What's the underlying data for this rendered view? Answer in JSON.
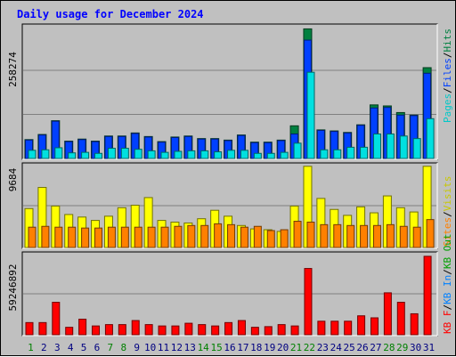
{
  "title": "Daily usage for December 2024",
  "colors": {
    "background": "#c0c0c0",
    "panel": "#c0c0c0",
    "grid": "#808080",
    "weekday_label": "#000080",
    "weekend_label": "#008000",
    "pages": "#00e0e0",
    "hits": "#008040",
    "files": "#0040ff",
    "visits": "#ffff00",
    "sites": "#ff8000",
    "kbytes": "#ff0000",
    "kb_in": "#0080ff",
    "kb_out": "#00a000"
  },
  "legend_top": [
    {
      "label": "Hits",
      "color": "#008040"
    },
    {
      "label": "/",
      "color": "#000000"
    },
    {
      "label": "Files",
      "color": "#0040ff"
    },
    {
      "label": "/",
      "color": "#000000"
    },
    {
      "label": "Pages",
      "color": "#00c8c8"
    }
  ],
  "legend_middle": [
    {
      "label": "Visits",
      "color": "#c8c800"
    },
    {
      "label": "/",
      "color": "#000000"
    },
    {
      "label": "Sites",
      "color": "#ff8000"
    }
  ],
  "legend_bottom": [
    {
      "label": "KB Out",
      "color": "#00a000"
    },
    {
      "label": "/",
      "color": "#000000"
    },
    {
      "label": "KB In",
      "color": "#0080ff"
    },
    {
      "label": "/",
      "color": "#000000"
    },
    {
      "label": "KB F",
      "color": "#ff0000"
    }
  ],
  "chart_data": [
    {
      "type": "bar",
      "panel": "hits-files-pages",
      "title": "Daily usage for December 2024",
      "ymax_label": "258274",
      "ylim": [
        0,
        258274
      ],
      "categories": [
        "1",
        "2",
        "3",
        "4",
        "5",
        "6",
        "7",
        "8",
        "9",
        "10",
        "11",
        "12",
        "13",
        "14",
        "15",
        "16",
        "17",
        "18",
        "19",
        "20",
        "21",
        "22",
        "23",
        "24",
        "25",
        "26",
        "27",
        "28",
        "29",
        "30",
        "31"
      ],
      "weekend_days": [
        "1",
        "7",
        "8",
        "14",
        "15",
        "21",
        "22",
        "28",
        "29"
      ],
      "series": [
        {
          "name": "Hits",
          "values": [
            37000,
            47000,
            74000,
            34000,
            38000,
            34000,
            44000,
            44000,
            50000,
            43000,
            33000,
            42000,
            44000,
            39000,
            39000,
            36000,
            46000,
            32000,
            32000,
            36000,
            64000,
            254000,
            56000,
            54000,
            51000,
            66000,
            105000,
            103000,
            90000,
            85000,
            178000
          ]
        },
        {
          "name": "Files",
          "values": [
            36000,
            46000,
            73000,
            33000,
            37000,
            33000,
            43000,
            43000,
            49000,
            42000,
            32000,
            41000,
            43000,
            38000,
            38000,
            35000,
            45000,
            31000,
            31000,
            35000,
            48000,
            232000,
            55000,
            53000,
            50000,
            65000,
            99000,
            100000,
            85000,
            84000,
            167000
          ]
        },
        {
          "name": "Pages",
          "values": [
            16000,
            17000,
            21000,
            11000,
            12000,
            10000,
            20000,
            20000,
            18000,
            15000,
            12000,
            14000,
            15000,
            15000,
            13000,
            16000,
            16000,
            10000,
            10000,
            12000,
            30000,
            169000,
            17000,
            17000,
            22000,
            22000,
            48000,
            48000,
            44000,
            39000,
            78000
          ]
        }
      ]
    },
    {
      "type": "bar",
      "panel": "visits-sites",
      "ymax_label": "9684",
      "ylim": [
        0,
        9684
      ],
      "categories": [
        "1",
        "2",
        "3",
        "4",
        "5",
        "6",
        "7",
        "8",
        "9",
        "10",
        "11",
        "12",
        "13",
        "14",
        "15",
        "16",
        "17",
        "18",
        "19",
        "20",
        "21",
        "22",
        "23",
        "24",
        "25",
        "26",
        "27",
        "28",
        "29",
        "30",
        "31"
      ],
      "series": [
        {
          "name": "Visits",
          "values": [
            4600,
            7100,
            4900,
            3900,
            3600,
            3200,
            3700,
            4700,
            5000,
            5900,
            3200,
            3000,
            2900,
            3400,
            4400,
            3700,
            2600,
            2200,
            2100,
            1900,
            4900,
            9600,
            5800,
            4500,
            3800,
            4800,
            4100,
            6100,
            4700,
            4200,
            9600
          ]
        },
        {
          "name": "Sites",
          "values": [
            2400,
            2500,
            2400,
            2400,
            2300,
            2300,
            2400,
            2400,
            2400,
            2400,
            2400,
            2500,
            2600,
            2600,
            2800,
            2700,
            2400,
            2500,
            2000,
            2100,
            3100,
            3000,
            2700,
            2700,
            2600,
            2600,
            2600,
            2700,
            2500,
            2400,
            3300
          ]
        }
      ]
    },
    {
      "type": "bar",
      "panel": "kbytes",
      "ymax_label": "59246892",
      "ylim": [
        0,
        59246892
      ],
      "categories": [
        "1",
        "2",
        "3",
        "4",
        "5",
        "6",
        "7",
        "8",
        "9",
        "10",
        "11",
        "12",
        "13",
        "14",
        "15",
        "16",
        "17",
        "18",
        "19",
        "20",
        "21",
        "22",
        "23",
        "24",
        "25",
        "26",
        "27",
        "28",
        "29",
        "30",
        "31"
      ],
      "series": [
        {
          "name": "KB F",
          "values": [
            9000000,
            9000000,
            24000000,
            5500000,
            11500000,
            6500000,
            7500000,
            7500000,
            10500000,
            7500000,
            6500000,
            6500000,
            8500000,
            7500000,
            6500000,
            9000000,
            10500000,
            5500000,
            6000000,
            7500000,
            6500000,
            49000000,
            10000000,
            10000000,
            10000000,
            14000000,
            12500000,
            31000000,
            24000000,
            15500000,
            58000000
          ]
        }
      ]
    }
  ]
}
